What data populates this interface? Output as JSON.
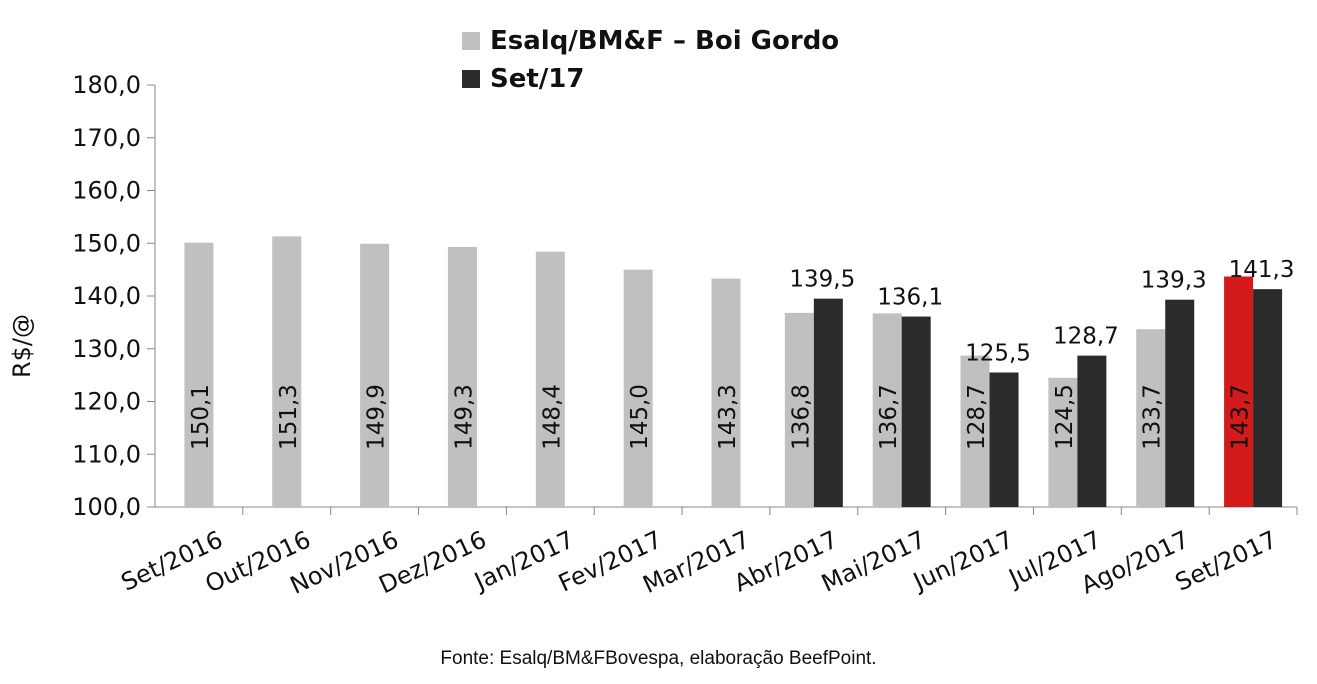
{
  "chart_data": {
    "type": "bar",
    "title": "",
    "ylabel": "R$/@",
    "xlabel": "",
    "ylim": [
      100,
      180
    ],
    "yticks": [
      "100,0",
      "110,0",
      "120,0",
      "130,0",
      "140,0",
      "150,0",
      "160,0",
      "170,0",
      "180,0"
    ],
    "grid": false,
    "legend_position": "top-center",
    "categories": [
      "Set/2016",
      "Out/2016",
      "Nov/2016",
      "Dez/2016",
      "Jan/2017",
      "Fev/2017",
      "Mar/2017",
      "Abr/2017",
      "Mai/2017",
      "Jun/2017",
      "Jul/2017",
      "Ago/2017",
      "Set/2017"
    ],
    "series": [
      {
        "name": "Esalq/BM&F – Boi Gordo",
        "color": "#c0c0c0",
        "highlight_color": "#d41a1a",
        "highlight_index": 12,
        "values": [
          150.1,
          151.3,
          149.9,
          149.3,
          148.4,
          145.0,
          143.3,
          136.8,
          136.7,
          128.7,
          124.5,
          133.7,
          143.7
        ],
        "labels": [
          "150,1",
          "151,3",
          "149,9",
          "149,3",
          "148,4",
          "145,0",
          "143,3",
          "136,8",
          "136,7",
          "128,7",
          "124,5",
          "133,7",
          "143,7"
        ]
      },
      {
        "name": "Set/17",
        "color": "#2b2b2b",
        "values": [
          null,
          null,
          null,
          null,
          null,
          null,
          null,
          139.5,
          136.1,
          125.5,
          128.7,
          139.3,
          141.3
        ],
        "labels": [
          "",
          "",
          "",
          "",
          "",
          "",
          "",
          "139,5",
          "136,1",
          "125,5",
          "128,7",
          "139,3",
          "141,3"
        ]
      }
    ]
  },
  "footer": {
    "source": "Fonte: Esalq/BM&FBovespa, elaboração BeefPoint."
  }
}
